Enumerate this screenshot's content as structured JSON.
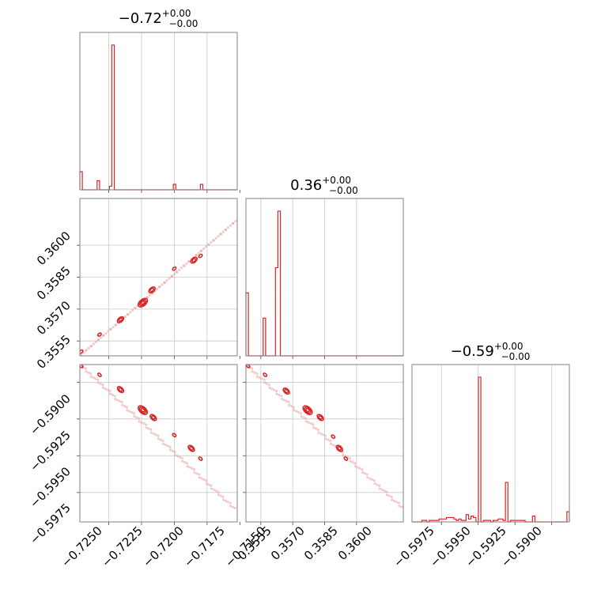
{
  "colors": {
    "accent": "#d62728",
    "scatter": "#e8a0a0",
    "grid": "#c8c8c8",
    "frame": "#808080"
  },
  "chart_data": {
    "type": "corner",
    "parameters": [
      {
        "title_value": "−0.72",
        "title_upper": "+0.00",
        "title_lower": "−0.00",
        "range": [
          -0.7272,
          -0.7152
        ],
        "ticks": [
          -0.725,
          -0.7225,
          -0.72,
          -0.7175,
          -0.715
        ],
        "tick_labels": [
          "−0.7250",
          "−0.7225",
          "−0.7200",
          "−0.7175",
          "−0.7150"
        ]
      },
      {
        "title_value": "0.36",
        "title_upper": "+0.00",
        "title_lower": "−0.00",
        "range": [
          0.3548,
          0.3622
        ],
        "ticks": [
          0.3555,
          0.357,
          0.3585,
          0.36
        ],
        "tick_labels": [
          "0.3555",
          "0.3570",
          "0.3585",
          "0.3600"
        ]
      },
      {
        "title_value": "−0.59",
        "title_upper": "+0.00",
        "title_lower": "−0.00",
        "range": [
          -0.5995,
          -0.5888
        ],
        "ticks": [
          -0.5975,
          -0.595,
          -0.5925,
          -0.59
        ],
        "tick_labels": [
          "−0.5975",
          "−0.5950",
          "−0.5925",
          "−0.5900"
        ]
      }
    ],
    "histograms": [
      {
        "param": 0,
        "values": [
          10,
          0,
          0,
          0,
          0,
          0,
          0,
          5,
          0,
          0,
          0,
          0,
          2,
          80,
          0,
          0,
          0,
          0,
          0,
          0,
          0,
          0,
          0,
          0,
          0,
          0,
          0,
          0,
          0,
          0,
          0,
          0,
          0,
          0,
          0,
          0,
          0,
          0,
          3,
          0,
          0,
          0,
          0,
          0,
          0,
          0,
          0,
          0,
          0,
          3,
          0,
          0,
          0,
          0,
          0,
          0,
          0,
          0,
          0,
          0,
          0,
          0,
          0,
          0
        ]
      },
      {
        "param": 1,
        "values": [
          10,
          0,
          0,
          0,
          0,
          0,
          0,
          6,
          0,
          0,
          0,
          0,
          14,
          23,
          0,
          0,
          0,
          0,
          0,
          0,
          0,
          0,
          0,
          0,
          0,
          0,
          0,
          0,
          0,
          0,
          0,
          0,
          0,
          0,
          0,
          0,
          0,
          0,
          0,
          0,
          0,
          0,
          0,
          0,
          0,
          0,
          0,
          0,
          0,
          0,
          0,
          0,
          0,
          0,
          0,
          0,
          0,
          0,
          0,
          0,
          0,
          0,
          0,
          0
        ]
      },
      {
        "param": 2,
        "values": [
          0,
          0,
          0,
          0,
          1,
          1,
          0,
          1,
          1,
          1,
          1,
          2,
          2,
          2,
          3,
          3,
          3,
          2,
          1,
          2,
          1,
          1,
          5,
          2,
          4,
          3,
          0,
          99,
          0,
          1,
          1,
          1,
          0,
          1,
          1,
          2,
          2,
          1,
          27,
          0,
          1,
          1,
          1,
          1,
          1,
          1,
          0,
          0,
          0,
          4,
          0,
          0,
          0,
          0,
          0,
          0,
          0,
          0,
          0,
          0,
          0,
          0,
          0,
          7
        ]
      }
    ],
    "pairs": [
      {
        "x_param": 0,
        "y_param": 1,
        "trend": [
          [
            -0.7272,
            0.3548
          ],
          [
            -0.7152,
            0.3612
          ]
        ],
        "clusters": [
          [
            -0.7271,
            0.355,
            1
          ],
          [
            -0.7257,
            0.3558,
            1
          ],
          [
            -0.7241,
            0.3565,
            2
          ],
          [
            -0.7224,
            0.3573,
            3
          ],
          [
            -0.7217,
            0.3579,
            2
          ],
          [
            -0.72,
            0.3589,
            1
          ],
          [
            -0.7185,
            0.3593,
            2
          ],
          [
            -0.718,
            0.3595,
            1
          ]
        ]
      },
      {
        "x_param": 0,
        "y_param": 2,
        "trend": [
          [
            -0.7272,
            -0.5888
          ],
          [
            -0.7154,
            -0.5986
          ]
        ],
        "clusters": [
          [
            -0.7271,
            -0.5889,
            1
          ],
          [
            -0.7257,
            -0.5895,
            1
          ],
          [
            -0.7241,
            -0.5905,
            2
          ],
          [
            -0.7224,
            -0.5919,
            3
          ],
          [
            -0.7216,
            -0.5924,
            2
          ],
          [
            -0.72,
            -0.5936,
            1
          ],
          [
            -0.7187,
            -0.5945,
            2
          ],
          [
            -0.718,
            -0.5952,
            1
          ]
        ]
      },
      {
        "x_param": 1,
        "y_param": 2,
        "trend": [
          [
            0.3548,
            -0.5888
          ],
          [
            0.3622,
            -0.5986
          ]
        ],
        "clusters": [
          [
            0.3549,
            -0.5889,
            1
          ],
          [
            0.3557,
            -0.5895,
            1
          ],
          [
            0.3567,
            -0.5906,
            2
          ],
          [
            0.3577,
            -0.5919,
            3
          ],
          [
            0.3583,
            -0.5924,
            2
          ],
          [
            0.3589,
            -0.5937,
            1
          ],
          [
            0.3592,
            -0.5945,
            2
          ],
          [
            0.3595,
            -0.5952,
            1
          ]
        ]
      }
    ]
  }
}
